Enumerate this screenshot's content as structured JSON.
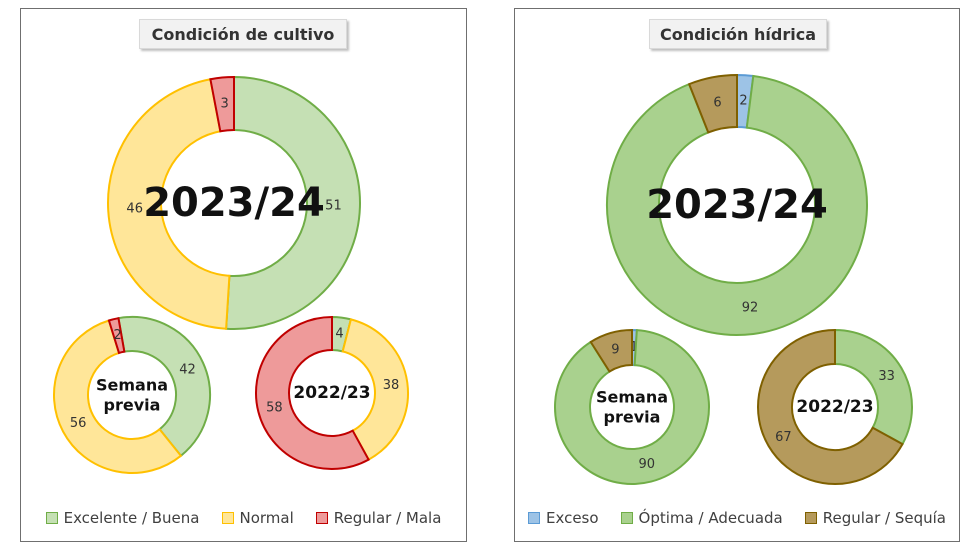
{
  "chart_data": [
    {
      "type": "pie",
      "panel": "left",
      "title": "Condición de cultivo",
      "legend": [
        "Excelente / Buena",
        "Normal",
        "Regular / Mala"
      ],
      "colors": {
        "fill": [
          "#c5e0b4",
          "#ffe699",
          "#ee9a9a"
        ],
        "stroke": [
          "#70ad47",
          "#ffc000",
          "#c00000"
        ]
      },
      "donuts": [
        {
          "label": "2023/24",
          "values": [
            51,
            46,
            3
          ]
        },
        {
          "label": "Semana previa",
          "values": [
            42,
            56,
            2
          ]
        },
        {
          "label": "2022/23",
          "values": [
            4,
            38,
            58
          ]
        }
      ]
    },
    {
      "type": "pie",
      "panel": "right",
      "title": "Condición hídrica",
      "legend": [
        "Exceso",
        "Óptima / Adecuada",
        "Regular / Sequía"
      ],
      "colors": {
        "fill": [
          "#9dc3e6",
          "#a9d18e",
          "#b59a5c"
        ],
        "stroke": [
          "#5b9bd5",
          "#70ad47",
          "#7f6000"
        ]
      },
      "donuts": [
        {
          "label": "2023/24",
          "values": [
            2,
            92,
            6
          ]
        },
        {
          "label": "Semana previa",
          "values": [
            1,
            90,
            9
          ]
        },
        {
          "label": "2022/23",
          "values": [
            0,
            33,
            67
          ]
        }
      ]
    }
  ]
}
